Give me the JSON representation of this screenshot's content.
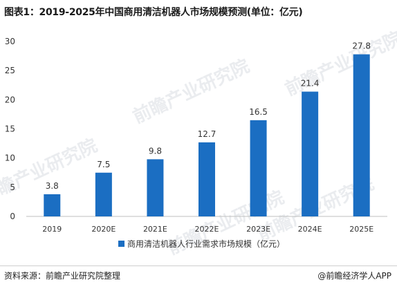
{
  "title": "图表1：2019-2025年中国商用清洁机器人市场规模预测(单位：亿元)",
  "footer": {
    "source": "资料来源：前瞻产业研究院整理",
    "credit": "@前瞻经济学人APP"
  },
  "watermark": {
    "text": "前瞻产业研究院"
  },
  "chart_data": {
    "type": "bar",
    "title": "图表1：2019-2025年中国商用清洁机器人市场规模预测(单位：亿元)",
    "categories": [
      "2019",
      "2020E",
      "2021E",
      "2022E",
      "2023E",
      "2024E",
      "2025E"
    ],
    "series": [
      {
        "name": "商用清洁机器人行业需求市场规模（亿元）",
        "values": [
          3.8,
          7.5,
          9.8,
          12.7,
          16.5,
          21.4,
          27.8
        ],
        "color": "#1b6ec2"
      }
    ],
    "data_labels": [
      "3.8",
      "7.5",
      "9.8",
      "12.7",
      "16.5",
      "21.4",
      "27.8"
    ],
    "ylim": [
      0,
      30
    ],
    "yticks": [
      0,
      5,
      10,
      15,
      20,
      25,
      30
    ],
    "grid": false,
    "legend_position": "bottom-center",
    "xlabel": "",
    "ylabel": ""
  }
}
